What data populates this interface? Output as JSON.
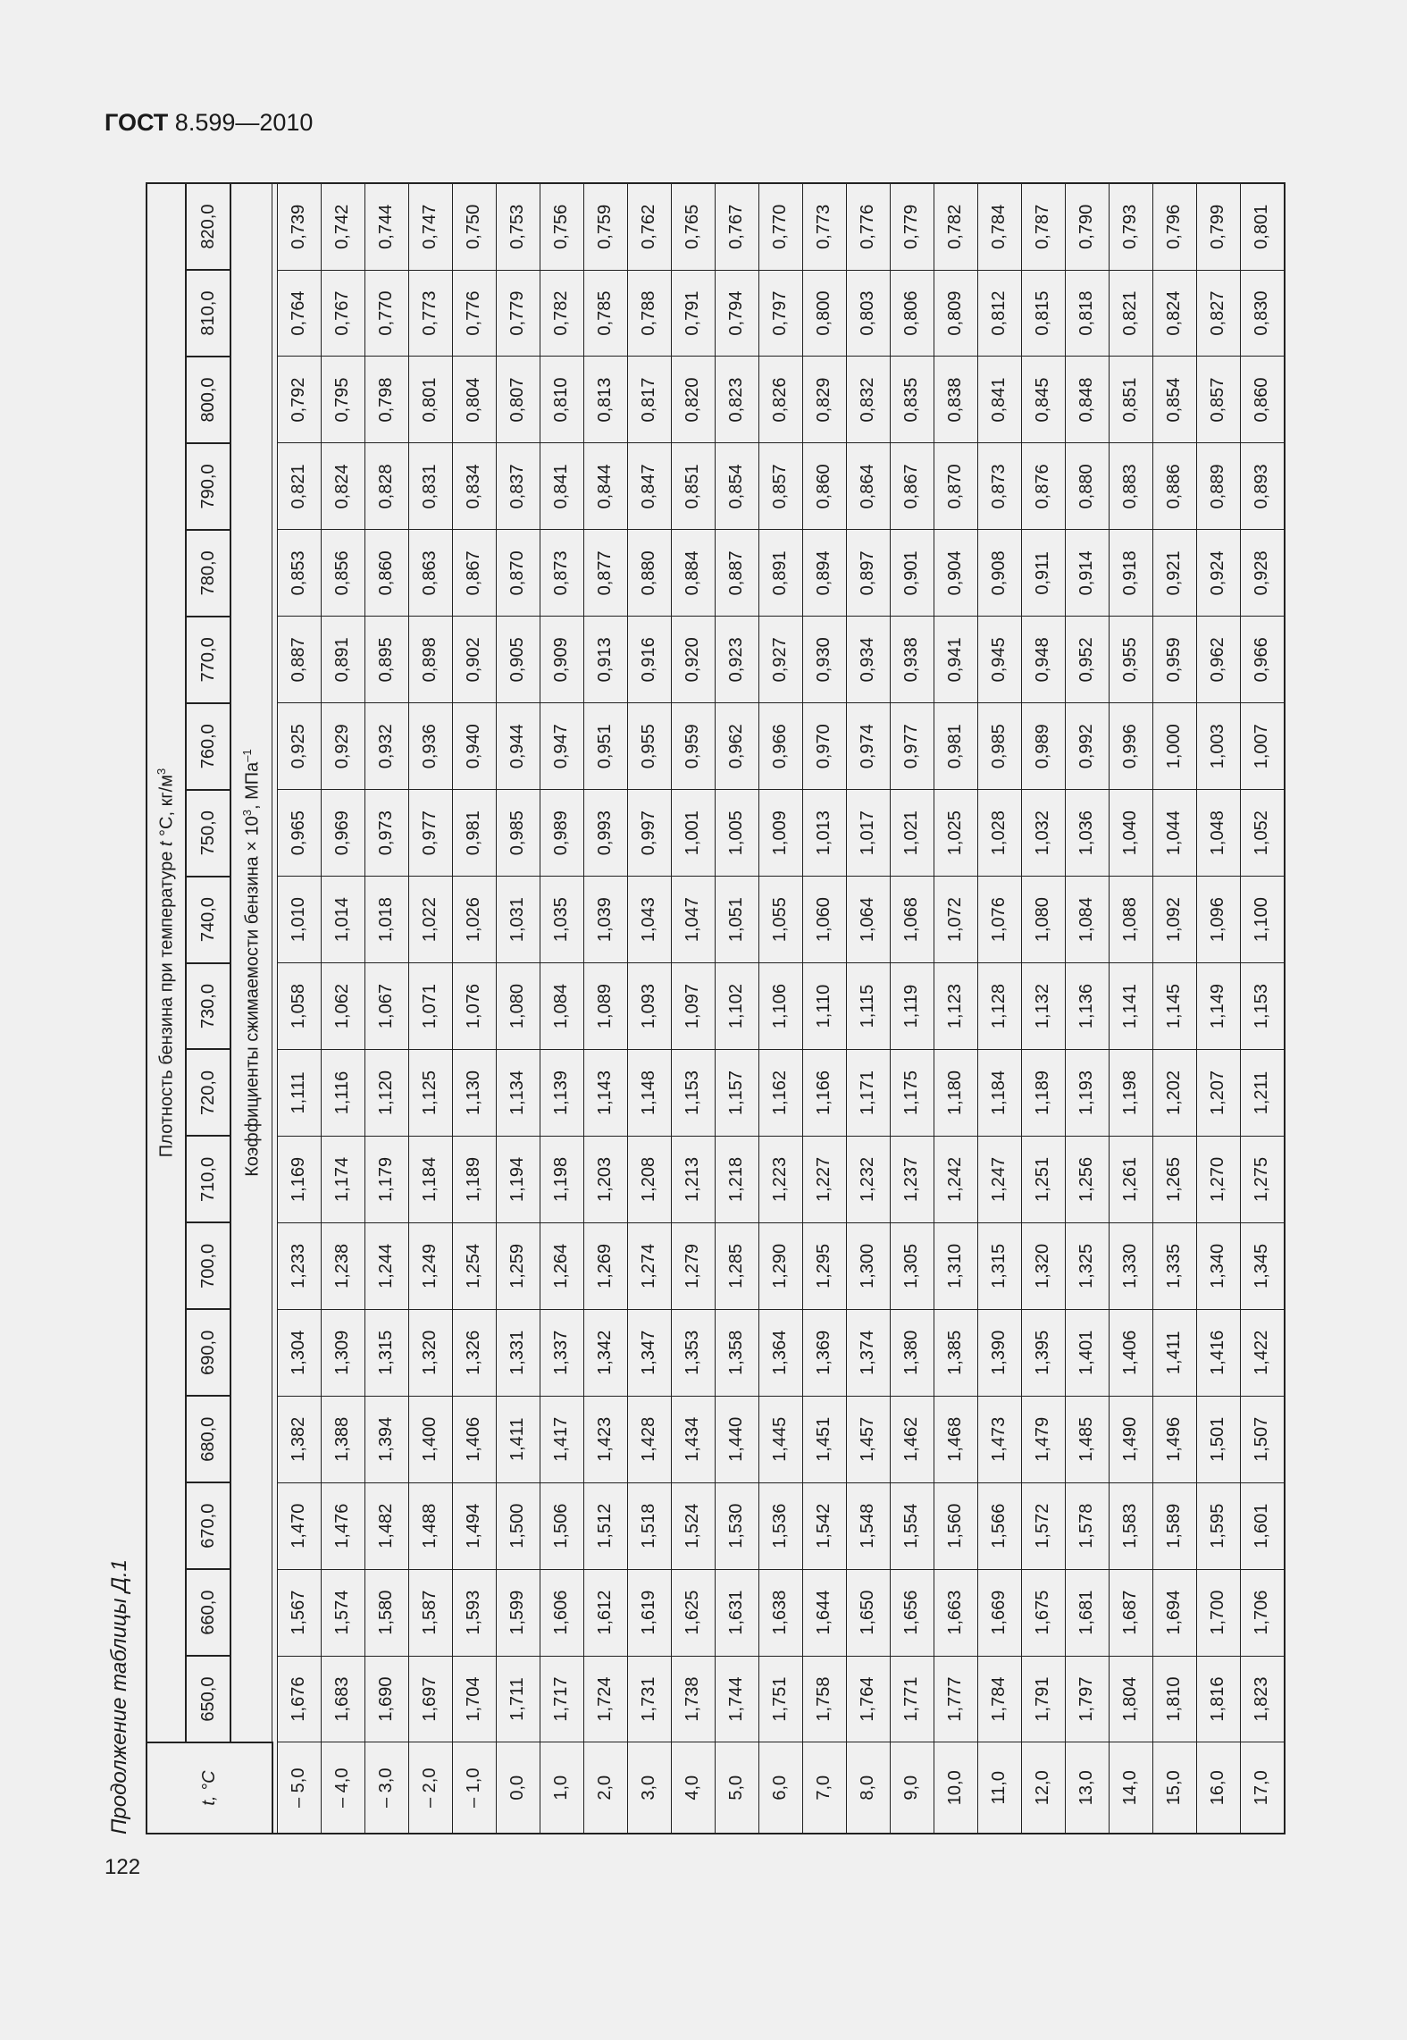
{
  "header": {
    "standard_bold": "ГОСТ",
    "standard_number": "8.599—2010"
  },
  "page_number": "122",
  "caption": "Продолжение таблицы Д.1",
  "table": {
    "temp_header": "t, °C",
    "density_header": {
      "before": "Плотность бензина при температуре ",
      "var": "t",
      "after": " °С, кг/м",
      "sup": "3"
    },
    "coef_header": {
      "before": "Коэффициенты сжимаемости бензина × 10",
      "sup1": "3",
      "mid": ", МПа",
      "sup2": "–1"
    },
    "densities": [
      "650,0",
      "660,0",
      "670,0",
      "680,0",
      "690,0",
      "700,0",
      "710,0",
      "720,0",
      "730,0",
      "740,0",
      "750,0",
      "760,0",
      "770,0",
      "780,0",
      "790,0",
      "800,0",
      "810,0",
      "820,0"
    ],
    "rows": [
      {
        "t": "– 5,0",
        "v": [
          "1,676",
          "1,567",
          "1,470",
          "1,382",
          "1,304",
          "1,233",
          "1,169",
          "1,111",
          "1,058",
          "1,010",
          "0,965",
          "0,925",
          "0,887",
          "0,853",
          "0,821",
          "0,792",
          "0,764",
          "0,739"
        ]
      },
      {
        "t": "– 4,0",
        "v": [
          "1,683",
          "1,574",
          "1,476",
          "1,388",
          "1,309",
          "1,238",
          "1,174",
          "1,116",
          "1,062",
          "1,014",
          "0,969",
          "0,929",
          "0,891",
          "0,856",
          "0,824",
          "0,795",
          "0,767",
          "0,742"
        ]
      },
      {
        "t": "– 3,0",
        "v": [
          "1,690",
          "1,580",
          "1,482",
          "1,394",
          "1,315",
          "1,244",
          "1,179",
          "1,120",
          "1,067",
          "1,018",
          "0,973",
          "0,932",
          "0,895",
          "0,860",
          "0,828",
          "0,798",
          "0,770",
          "0,744"
        ]
      },
      {
        "t": "– 2,0",
        "v": [
          "1,697",
          "1,587",
          "1,488",
          "1,400",
          "1,320",
          "1,249",
          "1,184",
          "1,125",
          "1,071",
          "1,022",
          "0,977",
          "0,936",
          "0,898",
          "0,863",
          "0,831",
          "0,801",
          "0,773",
          "0,747"
        ]
      },
      {
        "t": "– 1,0",
        "v": [
          "1,704",
          "1,593",
          "1,494",
          "1,406",
          "1,326",
          "1,254",
          "1,189",
          "1,130",
          "1,076",
          "1,026",
          "0,981",
          "0,940",
          "0,902",
          "0,867",
          "0,834",
          "0,804",
          "0,776",
          "0,750"
        ]
      },
      {
        "t": "0,0",
        "v": [
          "1,711",
          "1,599",
          "1,500",
          "1,411",
          "1,331",
          "1,259",
          "1,194",
          "1,134",
          "1,080",
          "1,031",
          "0,985",
          "0,944",
          "0,905",
          "0,870",
          "0,837",
          "0,807",
          "0,779",
          "0,753"
        ]
      },
      {
        "t": "1,0",
        "v": [
          "1,717",
          "1,606",
          "1,506",
          "1,417",
          "1,337",
          "1,264",
          "1,198",
          "1,139",
          "1,084",
          "1,035",
          "0,989",
          "0,947",
          "0,909",
          "0,873",
          "0,841",
          "0,810",
          "0,782",
          "0,756"
        ]
      },
      {
        "t": "2,0",
        "v": [
          "1,724",
          "1,612",
          "1,512",
          "1,423",
          "1,342",
          "1,269",
          "1,203",
          "1,143",
          "1,089",
          "1,039",
          "0,993",
          "0,951",
          "0,913",
          "0,877",
          "0,844",
          "0,813",
          "0,785",
          "0,759"
        ]
      },
      {
        "t": "3,0",
        "v": [
          "1,731",
          "1,619",
          "1,518",
          "1,428",
          "1,347",
          "1,274",
          "1,208",
          "1,148",
          "1,093",
          "1,043",
          "0,997",
          "0,955",
          "0,916",
          "0,880",
          "0,847",
          "0,817",
          "0,788",
          "0,762"
        ]
      },
      {
        "t": "4,0",
        "v": [
          "1,738",
          "1,625",
          "1,524",
          "1,434",
          "1,353",
          "1,279",
          "1,213",
          "1,153",
          "1,097",
          "1,047",
          "1,001",
          "0,959",
          "0,920",
          "0,884",
          "0,851",
          "0,820",
          "0,791",
          "0,765"
        ]
      },
      {
        "t": "5,0",
        "v": [
          "1,744",
          "1,631",
          "1,530",
          "1,440",
          "1,358",
          "1,285",
          "1,218",
          "1,157",
          "1,102",
          "1,051",
          "1,005",
          "0,962",
          "0,923",
          "0,887",
          "0,854",
          "0,823",
          "0,794",
          "0,767"
        ]
      },
      {
        "t": "6,0",
        "v": [
          "1,751",
          "1,638",
          "1,536",
          "1,445",
          "1,364",
          "1,290",
          "1,223",
          "1,162",
          "1,106",
          "1,055",
          "1,009",
          "0,966",
          "0,927",
          "0,891",
          "0,857",
          "0,826",
          "0,797",
          "0,770"
        ]
      },
      {
        "t": "7,0",
        "v": [
          "1,758",
          "1,644",
          "1,542",
          "1,451",
          "1,369",
          "1,295",
          "1,227",
          "1,166",
          "1,110",
          "1,060",
          "1,013",
          "0,970",
          "0,930",
          "0,894",
          "0,860",
          "0,829",
          "0,800",
          "0,773"
        ]
      },
      {
        "t": "8,0",
        "v": [
          "1,764",
          "1,650",
          "1,548",
          "1,457",
          "1,374",
          "1,300",
          "1,232",
          "1,171",
          "1,115",
          "1,064",
          "1,017",
          "0,974",
          "0,934",
          "0,897",
          "0,864",
          "0,832",
          "0,803",
          "0,776"
        ]
      },
      {
        "t": "9,0",
        "v": [
          "1,771",
          "1,656",
          "1,554",
          "1,462",
          "1,380",
          "1,305",
          "1,237",
          "1,175",
          "1,119",
          "1,068",
          "1,021",
          "0,977",
          "0,938",
          "0,901",
          "0,867",
          "0,835",
          "0,806",
          "0,779"
        ]
      },
      {
        "t": "10,0",
        "v": [
          "1,777",
          "1,663",
          "1,560",
          "1,468",
          "1,385",
          "1,310",
          "1,242",
          "1,180",
          "1,123",
          "1,072",
          "1,025",
          "0,981",
          "0,941",
          "0,904",
          "0,870",
          "0,838",
          "0,809",
          "0,782"
        ]
      },
      {
        "t": "11,0",
        "v": [
          "1,784",
          "1,669",
          "1,566",
          "1,473",
          "1,390",
          "1,315",
          "1,247",
          "1,184",
          "1,128",
          "1,076",
          "1,028",
          "0,985",
          "0,945",
          "0,908",
          "0,873",
          "0,841",
          "0,812",
          "0,784"
        ]
      },
      {
        "t": "12,0",
        "v": [
          "1,791",
          "1,675",
          "1,572",
          "1,479",
          "1,395",
          "1,320",
          "1,251",
          "1,189",
          "1,132",
          "1,080",
          "1,032",
          "0,989",
          "0,948",
          "0,911",
          "0,876",
          "0,845",
          "0,815",
          "0,787"
        ]
      },
      {
        "t": "13,0",
        "v": [
          "1,797",
          "1,681",
          "1,578",
          "1,485",
          "1,401",
          "1,325",
          "1,256",
          "1,193",
          "1,136",
          "1,084",
          "1,036",
          "0,992",
          "0,952",
          "0,914",
          "0,880",
          "0,848",
          "0,818",
          "0,790"
        ]
      },
      {
        "t": "14,0",
        "v": [
          "1,804",
          "1,687",
          "1,583",
          "1,490",
          "1,406",
          "1,330",
          "1,261",
          "1,198",
          "1,141",
          "1,088",
          "1,040",
          "0,996",
          "0,955",
          "0,918",
          "0,883",
          "0,851",
          "0,821",
          "0,793"
        ]
      },
      {
        "t": "15,0",
        "v": [
          "1,810",
          "1,694",
          "1,589",
          "1,496",
          "1,411",
          "1,335",
          "1,265",
          "1,202",
          "1,145",
          "1,092",
          "1,044",
          "1,000",
          "0,959",
          "0,921",
          "0,886",
          "0,854",
          "0,824",
          "0,796"
        ]
      },
      {
        "t": "16,0",
        "v": [
          "1,816",
          "1,700",
          "1,595",
          "1,501",
          "1,416",
          "1,340",
          "1,270",
          "1,207",
          "1,149",
          "1,096",
          "1,048",
          "1,003",
          "0,962",
          "0,924",
          "0,889",
          "0,857",
          "0,827",
          "0,799"
        ]
      },
      {
        "t": "17,0",
        "v": [
          "1,823",
          "1,706",
          "1,601",
          "1,507",
          "1,422",
          "1,345",
          "1,275",
          "1,211",
          "1,153",
          "1,100",
          "1,052",
          "1,007",
          "0,966",
          "0,928",
          "0,893",
          "0,860",
          "0,830",
          "0,801"
        ]
      }
    ]
  }
}
